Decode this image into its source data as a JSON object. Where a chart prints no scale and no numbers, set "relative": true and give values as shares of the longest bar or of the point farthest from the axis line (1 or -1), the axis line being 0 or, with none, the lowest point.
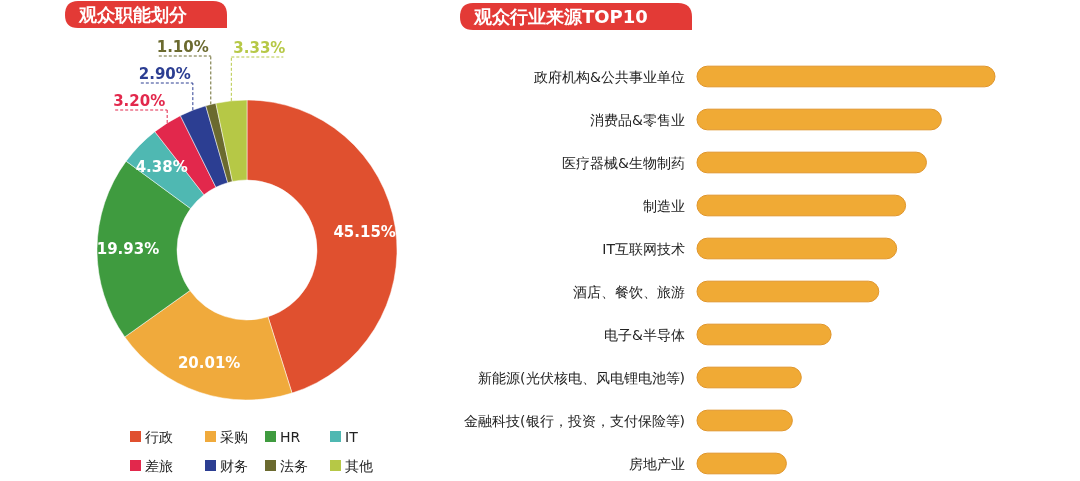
{
  "chart_data": [
    {
      "type": "donut",
      "title": "观众职能划分",
      "categories": [
        "行政",
        "采购",
        "HR",
        "IT",
        "差旅",
        "财务",
        "法务",
        "其他"
      ],
      "values": [
        45.15,
        20.01,
        19.93,
        4.38,
        3.2,
        2.9,
        1.1,
        3.33
      ],
      "colors": [
        "#e0502f",
        "#f0aa3c",
        "#3f9b3f",
        "#4fb8b2",
        "#e2284c",
        "#2c3e92",
        "#6b6a2f",
        "#b6c846"
      ],
      "value_labels": [
        "45.15%",
        "20.01%",
        "19.93%",
        "4.38%",
        "3.20%",
        "2.90%",
        "1.10%",
        "3.33%"
      ],
      "legend": "bottom"
    },
    {
      "type": "bar",
      "orientation": "horizontal",
      "relative": true,
      "title": "观众行业来源TOP10",
      "categories": [
        "政府机构&公共事业单位",
        "消费品&零售业",
        "医疗器械&生物制药",
        "制造业",
        "IT互联网技术",
        "酒店、餐饮、旅游",
        "电子&半导体",
        "新能源(光伏核电、风电锂电池等)",
        "金融科技(银行，投资，支付保险等)",
        "房地产业"
      ],
      "values": [
        1,
        0.82,
        0.77,
        0.7,
        0.67,
        0.61,
        0.45,
        0.35,
        0.32,
        0.3
      ],
      "color": "#f0aa35"
    }
  ]
}
